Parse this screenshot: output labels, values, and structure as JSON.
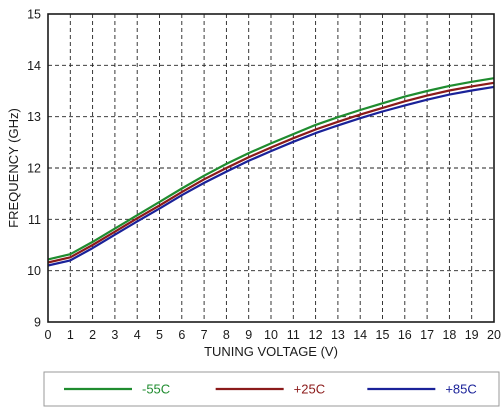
{
  "chart_data": {
    "type": "line",
    "title": "",
    "xlabel": "TUNING VOLTAGE (V)",
    "ylabel": "FREQUENCY (GHz)",
    "xlim": [
      0,
      20
    ],
    "ylim": [
      9,
      15
    ],
    "xticks": [
      "0",
      "1",
      "2",
      "3",
      "4",
      "5",
      "6",
      "7",
      "8",
      "9",
      "10",
      "11",
      "12",
      "13",
      "14",
      "15",
      "16",
      "17",
      "18",
      "19",
      "20"
    ],
    "yticks": [
      "9",
      "10",
      "11",
      "12",
      "13",
      "14",
      "15"
    ],
    "grid": true,
    "grid_style": "dashed",
    "legend_position": "bottom",
    "x": [
      0,
      1,
      2,
      3,
      4,
      5,
      6,
      7,
      8,
      9,
      10,
      11,
      12,
      13,
      14,
      15,
      16,
      17,
      18,
      19,
      20
    ],
    "series": [
      {
        "name": "-55C",
        "color": "#1f8c2f",
        "values": [
          10.22,
          10.32,
          10.56,
          10.82,
          11.08,
          11.34,
          11.6,
          11.85,
          12.08,
          12.29,
          12.48,
          12.66,
          12.84,
          12.99,
          13.13,
          13.26,
          13.39,
          13.5,
          13.6,
          13.68,
          13.75
        ]
      },
      {
        "name": "+25C",
        "color": "#8b1a1a",
        "values": [
          10.16,
          10.26,
          10.5,
          10.76,
          11.02,
          11.27,
          11.53,
          11.78,
          12.0,
          12.21,
          12.4,
          12.58,
          12.75,
          12.9,
          13.04,
          13.17,
          13.3,
          13.41,
          13.51,
          13.59,
          13.66
        ]
      },
      {
        "name": "+85C",
        "color": "#1a2299",
        "values": [
          10.1,
          10.2,
          10.44,
          10.7,
          10.96,
          11.21,
          11.47,
          11.71,
          11.93,
          12.14,
          12.33,
          12.51,
          12.68,
          12.83,
          12.97,
          13.1,
          13.22,
          13.33,
          13.43,
          13.51,
          13.58
        ]
      }
    ]
  }
}
